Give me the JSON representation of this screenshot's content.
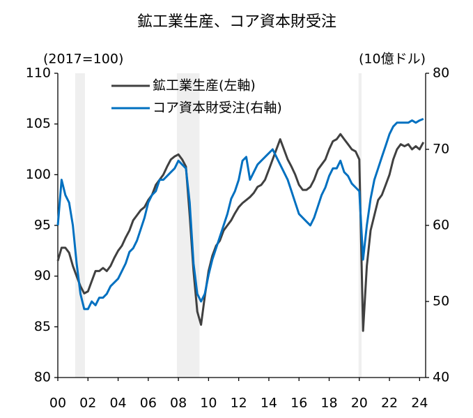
{
  "chart_data": {
    "type": "line",
    "title": "鉱工業生産、コア資本財受注",
    "y_unit": "(2017=100)",
    "y2_unit": "(10億ドル)",
    "x": [
      2000,
      2000.25,
      2000.5,
      2000.75,
      2001,
      2001.25,
      2001.5,
      2001.75,
      2002,
      2002.25,
      2002.5,
      2002.75,
      2003,
      2003.25,
      2003.5,
      2003.75,
      2004,
      2004.25,
      2004.5,
      2004.75,
      2005,
      2005.25,
      2005.5,
      2005.75,
      2006,
      2006.25,
      2006.5,
      2006.75,
      2007,
      2007.25,
      2007.5,
      2007.75,
      2008,
      2008.25,
      2008.5,
      2008.75,
      2009,
      2009.25,
      2009.5,
      2009.75,
      2010,
      2010.25,
      2010.5,
      2010.75,
      2011,
      2011.25,
      2011.5,
      2011.75,
      2012,
      2012.25,
      2012.5,
      2012.75,
      2013,
      2013.25,
      2013.5,
      2013.75,
      2014,
      2014.25,
      2014.5,
      2014.75,
      2015,
      2015.25,
      2015.5,
      2015.75,
      2016,
      2016.25,
      2016.5,
      2016.75,
      2017,
      2017.25,
      2017.5,
      2017.75,
      2018,
      2018.25,
      2018.5,
      2018.75,
      2019,
      2019.25,
      2019.5,
      2019.75,
      2020,
      2020.25,
      2020.5,
      2020.75,
      2021,
      2021.25,
      2021.5,
      2021.75,
      2022,
      2022.25,
      2022.5,
      2022.75,
      2023,
      2023.25,
      2023.5,
      2023.75,
      2024,
      2024.25
    ],
    "series": [
      {
        "name": "鉱工業生産(左軸)",
        "color": "#404040",
        "axis": "y",
        "values": [
          91.5,
          92.8,
          92.8,
          92.3,
          91.0,
          90.0,
          89.0,
          88.3,
          88.5,
          89.5,
          90.5,
          90.5,
          90.8,
          90.5,
          91.0,
          91.8,
          92.5,
          93.0,
          93.8,
          94.5,
          95.5,
          96.0,
          96.5,
          96.8,
          97.5,
          98.0,
          99.0,
          99.5,
          100.0,
          100.8,
          101.5,
          101.8,
          102.0,
          101.5,
          100.8,
          96.0,
          90.5,
          86.5,
          85.2,
          88.0,
          90.5,
          92.0,
          93.0,
          93.5,
          94.5,
          95.0,
          95.5,
          96.2,
          96.8,
          97.2,
          97.5,
          97.8,
          98.2,
          98.8,
          99.0,
          99.5,
          100.5,
          101.5,
          102.5,
          103.5,
          102.5,
          101.5,
          100.8,
          100.0,
          99.0,
          98.5,
          98.5,
          98.8,
          99.5,
          100.5,
          101.0,
          101.5,
          102.5,
          103.3,
          103.5,
          104.0,
          103.5,
          103.0,
          102.5,
          102.3,
          101.5,
          84.6,
          91.0,
          94.5,
          96.0,
          97.5,
          98.0,
          99.0,
          100.0,
          101.5,
          102.5,
          103.0,
          102.8,
          103.0,
          102.5,
          102.8,
          102.5,
          103.2
        ]
      },
      {
        "name": "コア資本財受注(右軸)",
        "color": "#0070c0",
        "axis": "y2",
        "values": [
          60,
          66,
          64,
          63,
          60,
          55,
          51,
          49,
          49,
          50,
          49.5,
          50.5,
          50.5,
          51,
          52,
          52.5,
          53,
          54,
          55,
          56.5,
          57,
          58,
          59.5,
          61,
          63,
          64,
          64.5,
          66,
          66,
          66.5,
          67,
          67.5,
          68.5,
          68,
          67.5,
          63,
          55,
          51,
          50,
          51,
          53.5,
          55.5,
          57,
          58.5,
          60,
          61.5,
          63.5,
          64.5,
          66,
          68.5,
          69,
          66,
          67,
          68,
          68.5,
          69,
          69.5,
          70,
          69,
          68,
          67,
          66,
          64.5,
          63,
          61.5,
          61,
          60.5,
          60,
          61,
          62.5,
          64,
          65,
          66.5,
          67.5,
          67.5,
          68.5,
          67,
          66.5,
          65.5,
          65,
          64.5,
          55.5,
          60,
          63.5,
          66,
          67.5,
          69,
          70.5,
          72,
          73,
          73.5,
          73.5,
          73.5,
          73.5,
          73.8,
          73.5,
          73.8,
          74
        ]
      }
    ],
    "shaded_periods": [
      [
        2001.15,
        2001.8
      ],
      [
        2007.9,
        2009.4
      ],
      [
        2019.95,
        2020.15
      ]
    ],
    "shade_color": "#efefef",
    "xlim": [
      2000,
      2024.4
    ],
    "xticks": [
      {
        "value": 2000,
        "label": "00"
      },
      {
        "value": 2002,
        "label": "02"
      },
      {
        "value": 2004,
        "label": "04"
      },
      {
        "value": 2006,
        "label": "06"
      },
      {
        "value": 2008,
        "label": "08"
      },
      {
        "value": 2010,
        "label": "10"
      },
      {
        "value": 2012,
        "label": "12"
      },
      {
        "value": 2014,
        "label": "14"
      },
      {
        "value": 2016,
        "label": "16"
      },
      {
        "value": 2018,
        "label": "18"
      },
      {
        "value": 2020,
        "label": "20"
      },
      {
        "value": 2022,
        "label": "22"
      },
      {
        "value": 2024,
        "label": "24"
      }
    ],
    "ylim": [
      80,
      110
    ],
    "yticks": [
      80,
      85,
      90,
      95,
      100,
      105,
      110
    ],
    "y2lim": [
      40,
      80
    ],
    "y2ticks": [
      40,
      50,
      60,
      70,
      80
    ],
    "legend": "upper-left"
  }
}
